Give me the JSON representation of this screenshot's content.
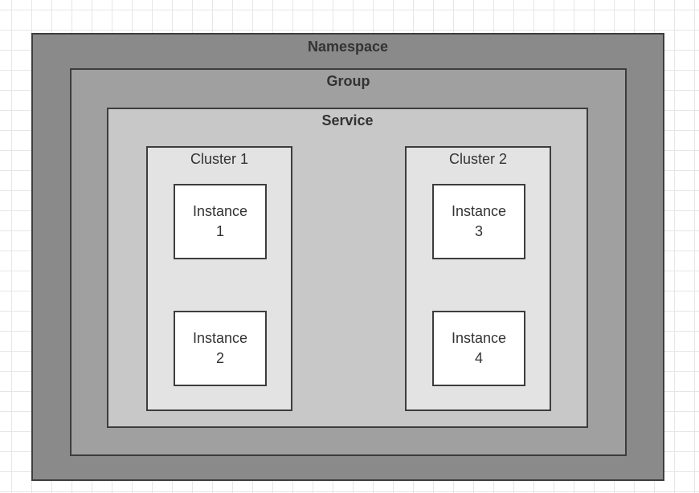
{
  "diagram": {
    "namespace": {
      "label": "Namespace"
    },
    "group": {
      "label": "Group"
    },
    "service": {
      "label": "Service"
    },
    "clusters": [
      {
        "label": "Cluster 1",
        "instances": [
          {
            "line1": "Instance",
            "line2": "1"
          },
          {
            "line1": "Instance",
            "line2": "2"
          }
        ]
      },
      {
        "label": "Cluster 2",
        "instances": [
          {
            "line1": "Instance",
            "line2": "3"
          },
          {
            "line1": "Instance",
            "line2": "4"
          }
        ]
      }
    ],
    "colors": {
      "namespace_fill": "#8a8a8a",
      "group_fill": "#a0a0a0",
      "service_fill": "#c8c8c8",
      "cluster_fill": "#e3e3e3",
      "instance_fill": "#ffffff",
      "border": "#3d3d3d",
      "text": "#333333"
    }
  }
}
